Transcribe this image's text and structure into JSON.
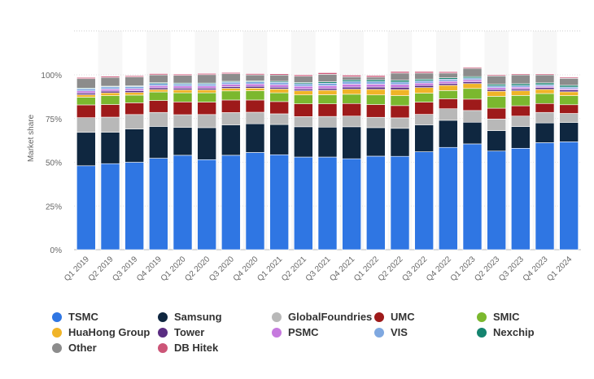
{
  "chart_data": {
    "type": "bar",
    "stacked": true,
    "title": "",
    "xlabel": "",
    "ylabel": "Market share",
    "ylim": [
      0,
      100
    ],
    "yticks": [
      "0%",
      "25%",
      "50%",
      "75%",
      "100%"
    ],
    "grid": true,
    "legend_position": "bottom",
    "categories": [
      "Q1 2019",
      "Q2 2019",
      "Q3 2019",
      "Q4 2019",
      "Q1 2020",
      "Q2 2020",
      "Q3 2020",
      "Q4 2020",
      "Q1 2021",
      "Q2 2021",
      "Q3 2021",
      "Q4 2021",
      "Q1 2022",
      "Q2 2022",
      "Q3 2022",
      "Q4 2022",
      "Q1 2023",
      "Q2 2023",
      "Q3 2023",
      "Q4 2023",
      "Q1 2024"
    ],
    "series": [
      {
        "name": "TSMC",
        "color": "#2f76e3",
        "values": [
          48,
          49.2,
          50,
          52.3,
          54,
          51.5,
          54,
          55.6,
          54.3,
          53,
          53,
          52,
          53.5,
          53.4,
          56,
          58.5,
          60.5,
          56.4,
          58,
          61.2,
          61.7
        ]
      },
      {
        "name": "Samsung",
        "color": "#0f2740",
        "values": [
          19.1,
          18,
          19,
          18.2,
          15.9,
          18.3,
          17.4,
          16.4,
          17.3,
          17.3,
          17.1,
          18.3,
          16.3,
          16,
          15.4,
          15.5,
          12.4,
          11.7,
          12.4,
          11.3,
          11
        ]
      },
      {
        "name": "GlobalFoundries",
        "color": "#b8b8b8",
        "values": [
          8.4,
          8.6,
          8.3,
          8,
          7.3,
          7.5,
          7,
          6.6,
          6.1,
          5.8,
          6.1,
          6.1,
          5.9,
          6,
          6,
          6.6,
          6.7,
          6.6,
          6,
          6,
          5.2
        ]
      },
      {
        "name": "UMC",
        "color": "#9e1a1a",
        "values": [
          7.3,
          7.2,
          6.7,
          6.8,
          7.3,
          7.1,
          7.2,
          7,
          7,
          7.3,
          7.2,
          7.2,
          7.3,
          7,
          7,
          5.7,
          6.5,
          6.2,
          5.9,
          5.1,
          5
        ]
      },
      {
        "name": "SMIC",
        "color": "#7bb82e",
        "values": [
          4.4,
          5.1,
          4.4,
          4.9,
          5.2,
          5.3,
          5.2,
          5.3,
          5,
          5.1,
          5.2,
          5.3,
          5.5,
          5.7,
          5.1,
          4.7,
          6.1,
          6.8,
          5.9,
          5.7,
          5.2
        ]
      },
      {
        "name": "HuaHong Group",
        "color": "#f0b428",
        "values": [
          1.4,
          1.6,
          1.5,
          1.4,
          1.7,
          1.7,
          1.5,
          1.5,
          2.2,
          2.4,
          2.6,
          2.9,
          3.2,
          3.5,
          3.2,
          3,
          2.8,
          2.9,
          2.7,
          2.4,
          2.2
        ]
      },
      {
        "name": "Tower",
        "color": "#5a2d82",
        "values": [
          1,
          1,
          1,
          1,
          1,
          1,
          1,
          1,
          1,
          1,
          1,
          1.2,
          1.3,
          1.3,
          1.2,
          1,
          1,
          1,
          1,
          1,
          1
        ]
      },
      {
        "name": "PSMC",
        "color": "#c67ade",
        "values": [
          1.2,
          1.2,
          1.2,
          1.2,
          1.2,
          1.2,
          1.3,
          1.4,
          1.5,
          1.6,
          1.6,
          1.7,
          1.7,
          1.6,
          1.4,
          1.3,
          1.2,
          1.1,
          1,
          0.8,
          0.8
        ]
      },
      {
        "name": "VIS",
        "color": "#7fa8e0",
        "values": [
          1.2,
          1.2,
          1.2,
          1.2,
          1.2,
          1.2,
          1.2,
          1.2,
          1.3,
          1.4,
          1.4,
          1.5,
          1.5,
          1.4,
          1.3,
          1.2,
          1,
          1,
          1,
          0.9,
          0.9
        ]
      },
      {
        "name": "Nexchip",
        "color": "#15846f",
        "values": [
          0.4,
          0.4,
          0.4,
          0.5,
          0.5,
          0.5,
          0.5,
          0.5,
          0.6,
          0.7,
          0.8,
          0.9,
          1,
          1,
          0.9,
          0.8,
          0.8,
          0.9,
          1,
          1,
          1
        ]
      },
      {
        "name": "Other",
        "color": "#8c8c8c",
        "values": [
          5.4,
          5,
          5.1,
          4.5,
          4.4,
          4.8,
          4.3,
          3.5,
          3.6,
          3.6,
          4.3,
          1.8,
          1.5,
          4.1,
          3.5,
          2.7,
          4.7,
          4.8,
          5.1,
          4.6,
          4
        ]
      },
      {
        "name": "DB Hitek",
        "color": "#cc5577",
        "values": [
          0.7,
          0.7,
          0.7,
          0.7,
          0.7,
          0.7,
          0.7,
          0.7,
          0.7,
          0.8,
          0.9,
          0.9,
          0.9,
          0.9,
          0.9,
          0.8,
          0.6,
          0.6,
          0.6,
          0.6,
          0.6
        ]
      }
    ]
  }
}
